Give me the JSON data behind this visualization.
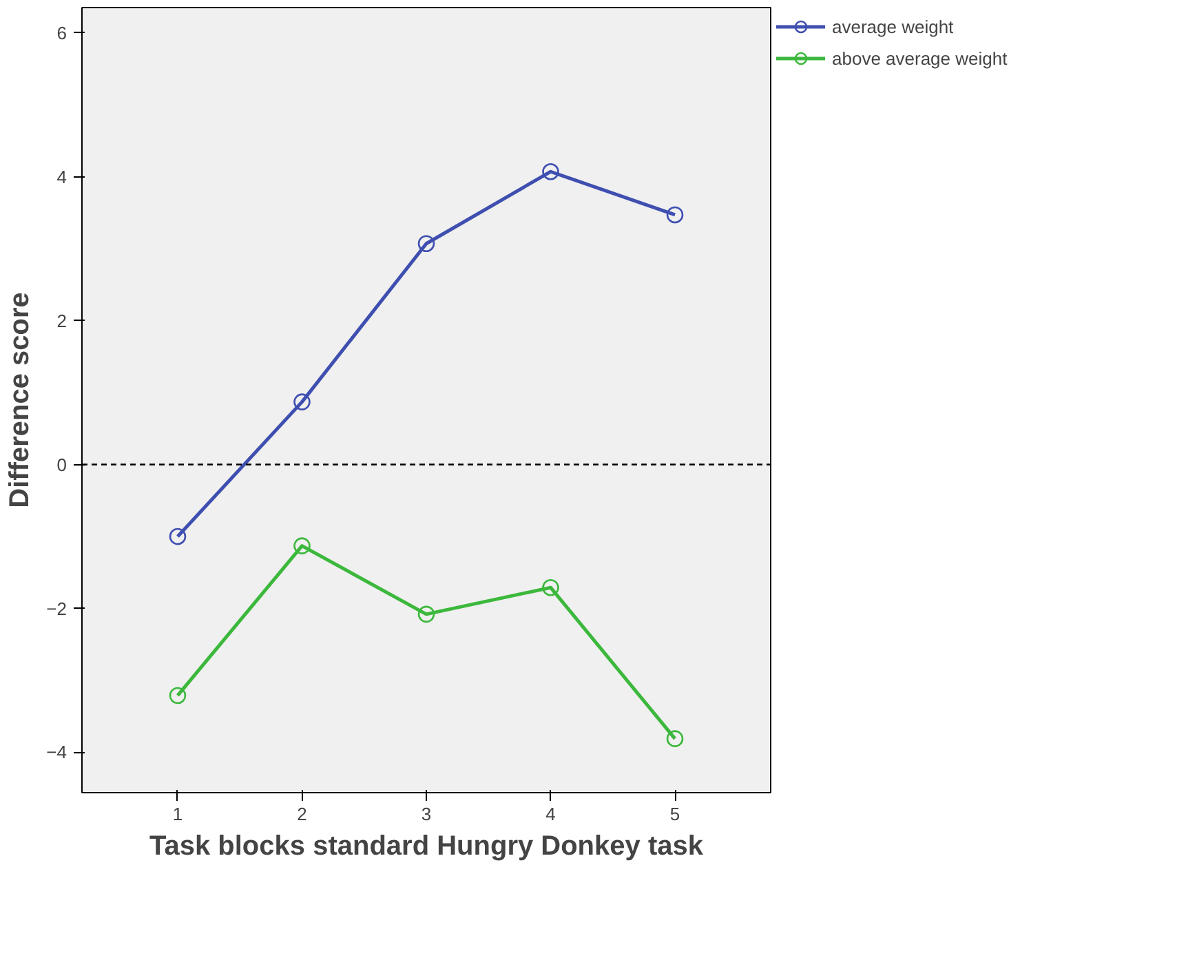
{
  "chart_data": {
    "type": "line",
    "xlabel": "Task blocks standard Hungry Donkey task",
    "ylabel": "Difference score",
    "categories": [
      "1",
      "2",
      "3",
      "4",
      "5"
    ],
    "series": [
      {
        "name": "average weight",
        "color": "#3f4fb0",
        "values": [
          -1.0,
          0.87,
          3.07,
          4.07,
          3.47
        ]
      },
      {
        "name": "above average weight",
        "color": "#3cb83c",
        "values": [
          -3.21,
          -1.13,
          -2.08,
          -1.71,
          -3.81
        ]
      }
    ],
    "ylim": [
      -4.56,
      6.35
    ],
    "yticks": [
      -4,
      -2,
      0,
      2,
      4,
      6
    ],
    "ref_lines": [
      {
        "axis": "y",
        "value": 0,
        "color": "#000000",
        "line_style": "dashed"
      }
    ],
    "grid": false,
    "legend": "top right",
    "marker": "circle",
    "line_style": "solid"
  }
}
